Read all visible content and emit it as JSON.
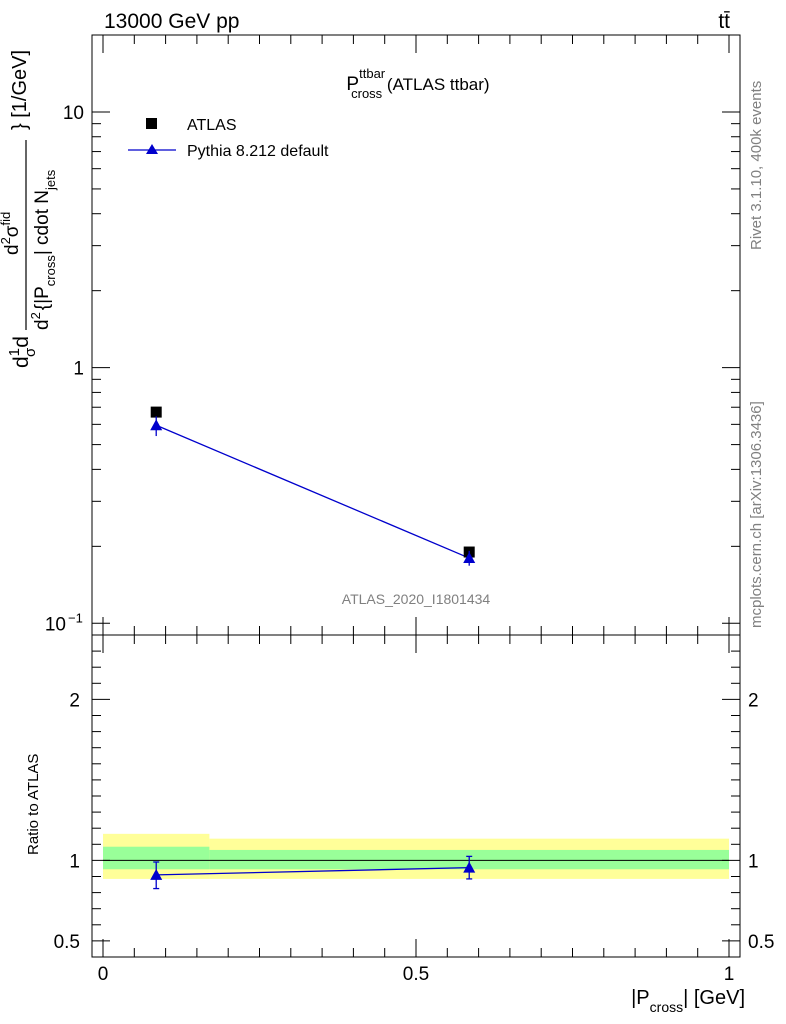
{
  "header": {
    "left": "13000 GeV pp",
    "right": "tt̄"
  },
  "side": {
    "rivet": "Rivet 3.1.10,  400k events",
    "mcplots": "mcplots.cern.ch [arXiv:1306.3436]"
  },
  "chart_data": [
    {
      "type": "scatter",
      "title_main": "P",
      "title_sup": "ttbar",
      "title_sub": "cross",
      "title_rest": " (ATLAS ttbar)",
      "watermark": "ATLAS_2020_I1801434",
      "ylabel": {
        "d1": "d",
        "one": "1",
        "sigma_small": "σ",
        "d2": "d",
        "num": "d",
        "num_sup": "2",
        "num_sigma": "σ",
        "num_sup2": "fid",
        "den": "d",
        "den_sup": "2",
        "den_text": "{|P",
        "den_sub": "cross",
        "den_text2": "| cdot N",
        "den_sub2": "jets",
        "units": "} [1/GeV]"
      },
      "yscale": "log",
      "ylim": [
        0.09,
        20
      ],
      "xlim": [
        0,
        1
      ],
      "y_ticks": [
        {
          "value": 10,
          "label": "10"
        },
        {
          "value": 1,
          "label": "1"
        },
        {
          "value": 0.1,
          "label": "10",
          "sup": "−1"
        }
      ],
      "legend_position": "top-left",
      "series": [
        {
          "name": "ATLAS",
          "marker": "square",
          "color": "#000000",
          "points": [
            {
              "x": 0.085,
              "y": 0.67
            },
            {
              "x": 0.585,
              "y": 0.19
            }
          ]
        },
        {
          "name": "Pythia 8.212 default",
          "marker": "triangle",
          "color": "#0000cc",
          "line": true,
          "points": [
            {
              "x": 0.085,
              "y": 0.595,
              "yerr": [
                0.055,
                0.05
              ]
            },
            {
              "x": 0.585,
              "y": 0.18,
              "yerr": [
                0.012,
                0.012
              ]
            }
          ]
        }
      ]
    },
    {
      "type": "scatter",
      "ylabel": "Ratio to ATLAS",
      "xlabel": {
        "pre": "|P",
        "sub": "cross",
        "post": "| [GeV]"
      },
      "ylim": [
        0.4,
        2.4
      ],
      "xlim": [
        0,
        1
      ],
      "y_ticks": [
        {
          "value": 2,
          "label": "2"
        },
        {
          "value": 1,
          "label": "1"
        },
        {
          "value": 0.5,
          "label": "0.5"
        }
      ],
      "x_ticks": [
        {
          "value": 0,
          "label": "0"
        },
        {
          "value": 0.5,
          "label": "0.5"
        },
        {
          "value": 1,
          "label": "1"
        }
      ],
      "bands": [
        {
          "x0": 0.0,
          "x1": 0.17,
          "yellow": [
            0.885,
            1.165
          ],
          "green": [
            0.945,
            1.085
          ]
        },
        {
          "x0": 0.17,
          "x1": 1.0,
          "yellow": [
            0.885,
            1.135
          ],
          "green": [
            0.945,
            1.065
          ]
        }
      ],
      "reference_line": 1,
      "series": [
        {
          "name": "Pythia 8.212 default",
          "marker": "triangle",
          "color": "#0000cc",
          "points": [
            {
              "x": 0.085,
              "y": 0.91,
              "yerr": [
                0.085,
                0.08
              ]
            },
            {
              "x": 0.585,
              "y": 0.955,
              "yerr": [
                0.07,
                0.07
              ]
            }
          ]
        }
      ]
    }
  ],
  "colors": {
    "yellow_band": "#ffff99",
    "green_band": "#99ff99",
    "mc": "#0000cc",
    "data": "#000000"
  }
}
